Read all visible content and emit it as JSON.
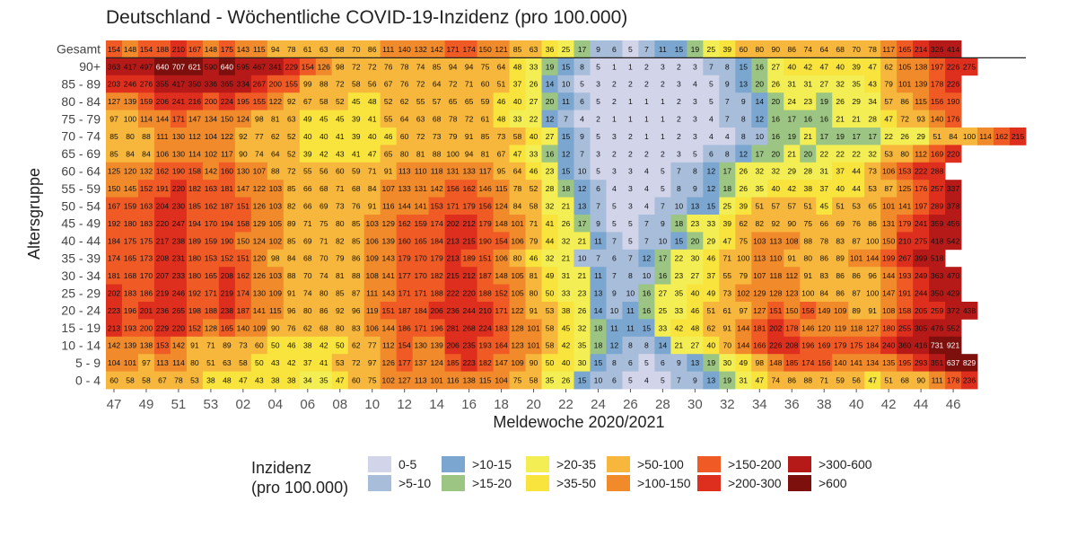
{
  "chart_data": {
    "type": "heatmap",
    "title": "Deutschland - Wöchentliche COVID-19-Inzidenz (pro 100.000)",
    "xlabel": "Meldewoche 2020/2021",
    "ylabel": "Altersgruppe",
    "x_tick_labels": [
      "47",
      "49",
      "51",
      "53",
      "02",
      "04",
      "06",
      "08",
      "10",
      "12",
      "14",
      "16",
      "18",
      "20",
      "22",
      "24",
      "26",
      "28",
      "30",
      "32",
      "34",
      "36",
      "38",
      "40",
      "42",
      "44",
      "46"
    ],
    "rows": [
      "Gesamt",
      "90+",
      "85 - 89",
      "80 - 84",
      "75 - 79",
      "70 - 74",
      "65 - 69",
      "60 - 64",
      "55 - 59",
      "50 - 54",
      "45 - 49",
      "40 - 44",
      "35 - 39",
      "30 - 34",
      "25 - 29",
      "20 - 24",
      "15 - 19",
      "10 - 14",
      "5 - 9",
      "0 - 4"
    ],
    "values": [
      [
        154,
        148,
        154,
        188,
        210,
        167,
        148,
        175,
        143,
        115,
        94,
        78,
        61,
        63,
        68,
        70,
        86,
        111,
        140,
        132,
        142,
        171,
        174,
        150,
        121,
        85,
        63,
        36,
        25,
        17,
        9,
        6,
        5,
        7,
        11,
        15,
        19,
        25,
        39,
        60,
        80,
        90,
        86,
        74,
        64,
        68,
        70,
        78,
        117,
        165,
        214,
        326,
        414
      ],
      [
        363,
        417,
        497,
        640,
        707,
        621,
        590,
        640,
        595,
        467,
        341,
        229,
        154,
        126,
        98,
        72,
        72,
        76,
        78,
        74,
        85,
        94,
        94,
        75,
        64,
        48,
        33,
        19,
        15,
        8,
        5,
        1,
        1,
        2,
        3,
        2,
        3,
        7,
        8,
        15,
        16,
        27,
        40,
        42,
        47,
        40,
        39,
        47,
        62,
        105,
        138,
        197,
        226,
        275
      ],
      [
        203,
        246,
        276,
        355,
        417,
        350,
        336,
        365,
        334,
        267,
        200,
        155,
        99,
        88,
        72,
        58,
        56,
        67,
        76,
        72,
        64,
        72,
        71,
        60,
        51,
        37,
        26,
        14,
        10,
        5,
        3,
        2,
        2,
        2,
        2,
        3,
        4,
        5,
        9,
        13,
        20,
        26,
        31,
        31,
        27,
        32,
        35,
        43,
        79,
        101,
        139,
        178,
        226
      ],
      [
        127,
        139,
        159,
        206,
        241,
        216,
        200,
        224,
        195,
        155,
        122,
        92,
        67,
        58,
        52,
        45,
        48,
        52,
        62,
        55,
        57,
        65,
        65,
        59,
        46,
        40,
        27,
        20,
        11,
        6,
        5,
        2,
        1,
        1,
        1,
        2,
        3,
        5,
        7,
        9,
        14,
        20,
        24,
        23,
        19,
        26,
        29,
        34,
        57,
        86,
        115,
        156,
        190
      ],
      [
        97,
        100,
        114,
        144,
        171,
        147,
        134,
        150,
        124,
        98,
        81,
        63,
        49,
        45,
        45,
        39,
        41,
        55,
        64,
        63,
        68,
        78,
        72,
        61,
        48,
        33,
        22,
        12,
        7,
        4,
        2,
        1,
        1,
        1,
        1,
        2,
        3,
        4,
        7,
        8,
        12,
        16,
        17,
        16,
        16,
        21,
        21,
        28,
        47,
        72,
        93,
        140,
        176
      ],
      [
        85,
        80,
        88,
        111,
        130,
        112,
        104,
        122,
        92,
        77,
        62,
        52,
        40,
        40,
        41,
        39,
        40,
        46,
        60,
        72,
        73,
        79,
        91,
        85,
        73,
        58,
        40,
        27,
        15,
        9,
        5,
        3,
        2,
        1,
        1,
        2,
        3,
        4,
        4,
        8,
        10,
        16,
        19,
        21,
        17,
        19,
        17,
        17,
        22,
        26,
        29,
        51,
        84,
        100,
        114,
        162,
        215
      ],
      [
        85,
        84,
        84,
        106,
        130,
        114,
        102,
        117,
        90,
        74,
        64,
        52,
        39,
        42,
        43,
        41,
        47,
        65,
        80,
        81,
        88,
        100,
        94,
        81,
        67,
        47,
        33,
        16,
        12,
        7,
        3,
        2,
        2,
        2,
        2,
        3,
        5,
        6,
        8,
        12,
        17,
        20,
        21,
        20,
        22,
        22,
        22,
        32,
        53,
        80,
        112,
        169,
        220
      ],
      [
        125,
        120,
        132,
        162,
        190,
        158,
        142,
        160,
        130,
        107,
        88,
        72,
        55,
        56,
        60,
        59,
        71,
        91,
        113,
        110,
        118,
        131,
        133,
        117,
        95,
        64,
        46,
        23,
        15,
        10,
        5,
        3,
        3,
        4,
        5,
        7,
        8,
        12,
        17,
        26,
        32,
        32,
        29,
        28,
        31,
        37,
        44,
        73,
        106,
        153,
        222,
        288
      ],
      [
        150,
        145,
        152,
        191,
        220,
        182,
        163,
        181,
        147,
        122,
        103,
        85,
        66,
        68,
        71,
        68,
        84,
        107,
        133,
        131,
        142,
        156,
        162,
        146,
        115,
        78,
        52,
        28,
        18,
        12,
        6,
        4,
        3,
        4,
        5,
        8,
        9,
        12,
        18,
        26,
        35,
        40,
        42,
        38,
        37,
        40,
        44,
        53,
        87,
        125,
        176,
        257,
        337
      ],
      [
        167,
        159,
        163,
        204,
        230,
        185,
        162,
        187,
        151,
        126,
        103,
        82,
        66,
        69,
        73,
        76,
        91,
        116,
        144,
        141,
        153,
        171,
        179,
        156,
        124,
        84,
        58,
        32,
        21,
        13,
        7,
        5,
        3,
        4,
        7,
        10,
        13,
        15,
        25,
        39,
        51,
        57,
        57,
        51,
        45,
        51,
        53,
        65,
        101,
        141,
        197,
        289,
        378
      ],
      [
        192,
        180,
        183,
        220,
        247,
        194,
        170,
        194,
        158,
        129,
        105,
        89,
        71,
        75,
        80,
        85,
        103,
        129,
        162,
        159,
        174,
        202,
        212,
        179,
        148,
        101,
        71,
        41,
        26,
        17,
        9,
        5,
        5,
        7,
        9,
        18,
        23,
        33,
        39,
        62,
        82,
        92,
        90,
        75,
        66,
        69,
        76,
        86,
        131,
        179,
        241,
        359,
        456
      ],
      [
        184,
        175,
        175,
        217,
        238,
        189,
        159,
        190,
        150,
        124,
        102,
        85,
        69,
        71,
        82,
        85,
        106,
        139,
        160,
        165,
        184,
        213,
        215,
        190,
        154,
        106,
        79,
        44,
        32,
        21,
        11,
        7,
        5,
        7,
        10,
        15,
        20,
        29,
        47,
        75,
        103,
        113,
        108,
        88,
        78,
        83,
        87,
        100,
        150,
        210,
        275,
        418,
        542
      ],
      [
        174,
        165,
        173,
        208,
        231,
        180,
        153,
        152,
        151,
        120,
        98,
        84,
        68,
        70,
        79,
        86,
        109,
        143,
        179,
        170,
        179,
        213,
        189,
        151,
        106,
        80,
        46,
        32,
        21,
        10,
        7,
        6,
        7,
        12,
        17,
        22,
        30,
        46,
        71,
        100,
        113,
        110,
        91,
        80,
        86,
        89,
        101,
        144,
        199,
        267,
        399,
        518
      ],
      [
        181,
        168,
        170,
        207,
        233,
        180,
        165,
        208,
        162,
        126,
        103,
        88,
        70,
        74,
        81,
        88,
        108,
        141,
        177,
        170,
        182,
        215,
        212,
        187,
        148,
        105,
        81,
        49,
        31,
        21,
        11,
        7,
        8,
        10,
        16,
        23,
        27,
        37,
        55,
        79,
        107,
        118,
        112,
        91,
        83,
        86,
        86,
        96,
        144,
        193,
        249,
        363,
        470
      ],
      [
        202,
        183,
        186,
        219,
        246,
        192,
        171,
        219,
        174,
        130,
        109,
        91,
        74,
        80,
        85,
        87,
        111,
        143,
        171,
        171,
        188,
        222,
        220,
        188,
        152,
        105,
        80,
        50,
        33,
        23,
        13,
        9,
        10,
        16,
        27,
        35,
        40,
        49,
        73,
        102,
        129,
        128,
        123,
        100,
        84,
        86,
        87,
        100,
        147,
        191,
        244,
        350,
        429
      ],
      [
        223,
        196,
        201,
        236,
        265,
        198,
        188,
        238,
        187,
        141,
        115,
        96,
        80,
        86,
        92,
        96,
        119,
        151,
        187,
        184,
        206,
        236,
        244,
        210,
        171,
        122,
        91,
        53,
        38,
        26,
        14,
        10,
        11,
        16,
        25,
        33,
        46,
        51,
        61,
        97,
        127,
        151,
        150,
        156,
        149,
        109,
        89,
        91,
        108,
        158,
        205,
        259,
        372,
        438
      ],
      [
        213,
        193,
        200,
        229,
        220,
        152,
        128,
        165,
        140,
        109,
        90,
        76,
        62,
        68,
        80,
        83,
        106,
        144,
        186,
        171,
        196,
        281,
        268,
        224,
        183,
        128,
        101,
        58,
        45,
        32,
        18,
        11,
        11,
        15,
        33,
        42,
        48,
        62,
        91,
        144,
        181,
        202,
        178,
        146,
        120,
        119,
        118,
        127,
        180,
        255,
        305,
        476,
        552
      ],
      [
        142,
        139,
        138,
        153,
        142,
        91,
        71,
        89,
        73,
        60,
        50,
        46,
        38,
        42,
        50,
        62,
        77,
        112,
        154,
        130,
        139,
        206,
        235,
        193,
        164,
        123,
        101,
        58,
        42,
        35,
        18,
        12,
        8,
        8,
        14,
        21,
        27,
        40,
        70,
        144,
        166,
        226,
        208,
        196,
        169,
        179,
        175,
        184,
        240,
        360,
        416,
        731,
        921
      ],
      [
        104,
        101,
        97,
        113,
        114,
        80,
        51,
        63,
        58,
        50,
        43,
        42,
        37,
        41,
        53,
        72,
        97,
        126,
        177,
        137,
        124,
        185,
        223,
        182,
        147,
        109,
        90,
        50,
        40,
        30,
        15,
        8,
        6,
        5,
        6,
        9,
        13,
        19,
        30,
        49,
        98,
        148,
        185,
        174,
        156,
        140,
        141,
        134,
        135,
        195,
        293,
        351,
        637,
        829
      ],
      [
        60,
        58,
        58,
        67,
        78,
        53,
        38,
        48,
        47,
        43,
        38,
        38,
        34,
        35,
        47,
        60,
        75,
        102,
        127,
        113,
        101,
        116,
        138,
        115,
        104,
        75,
        58,
        35,
        26,
        15,
        10,
        6,
        5,
        4,
        5,
        7,
        9,
        13,
        19,
        31,
        47,
        74,
        86,
        88,
        71,
        59,
        56,
        47,
        51,
        68,
        90,
        111,
        178,
        236
      ]
    ],
    "bins": [
      "0-5",
      ">5-10",
      ">10-15",
      ">15-20",
      ">20-35",
      ">35-50",
      ">50-100",
      ">100-150",
      ">150-200",
      ">200-300",
      ">300-600",
      ">600"
    ],
    "colors": [
      "#d2d4ea",
      "#a7bdd9",
      "#7aa6d0",
      "#9cc482",
      "#f3ee53",
      "#f8e43c",
      "#f6b73c",
      "#f08a2b",
      "#ef5a25",
      "#de2e1e",
      "#b51a18",
      "#7d0f0d"
    ],
    "legend_title": [
      "Inzidenz",
      "(pro 100.000)"
    ],
    "legend_position": "bottom"
  }
}
